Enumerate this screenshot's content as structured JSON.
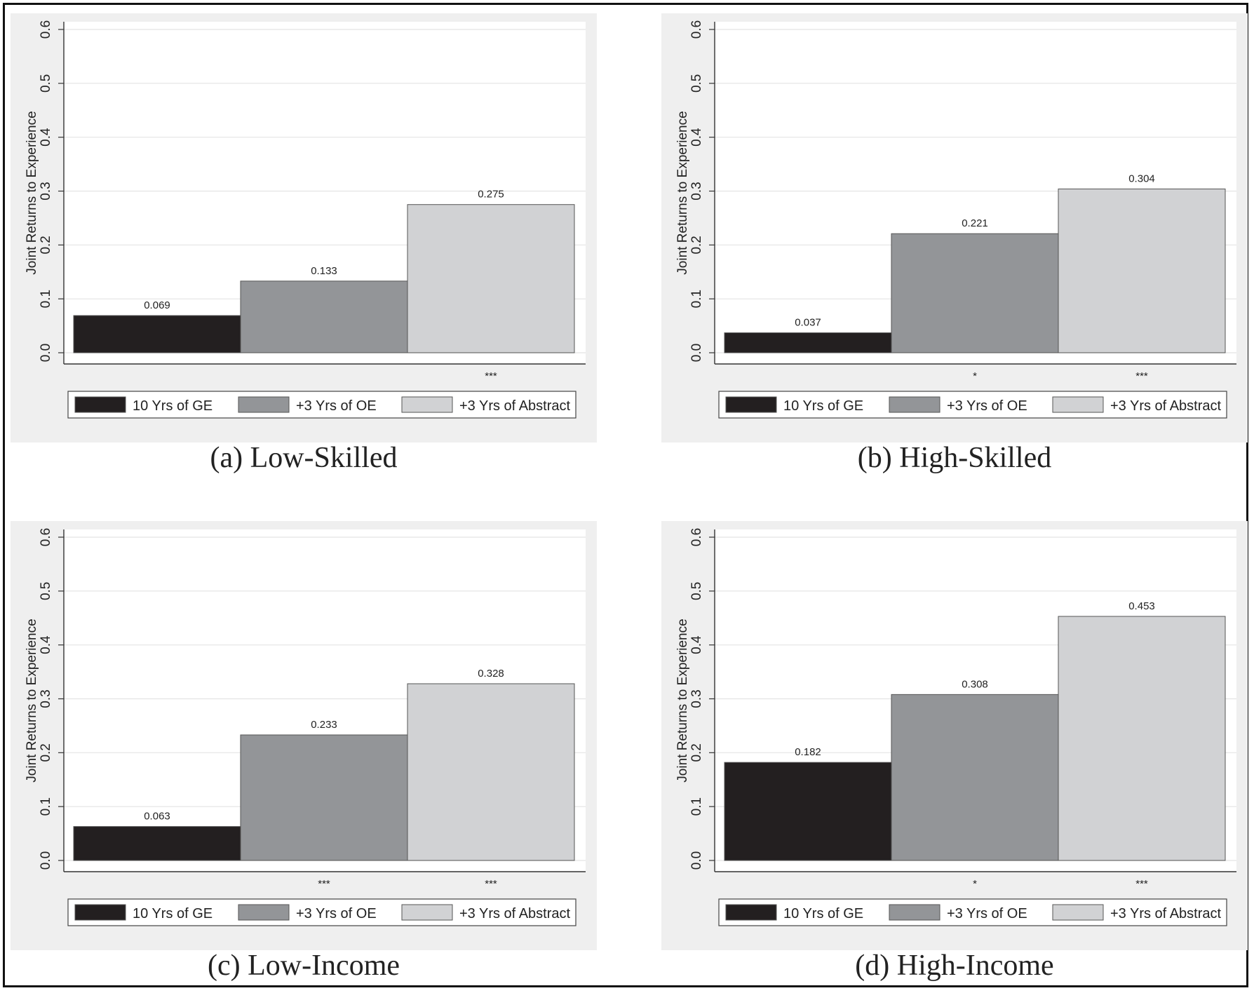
{
  "chart_data": [
    {
      "type": "bar",
      "caption": "(a) Low-Skilled",
      "ylabel": "Joint Returns to Experience",
      "ylim": [
        0,
        0.6
      ],
      "yticks": [
        "0.0",
        "0.1",
        "0.2",
        "0.3",
        "0.4",
        "0.5",
        "0.6"
      ],
      "grid": true,
      "legend_position": "bottom",
      "categories": [
        "10 Yrs of GE",
        "+3 Yrs of OE",
        "+3 Yrs of Abstract"
      ],
      "values": [
        0.069,
        0.133,
        0.275
      ],
      "value_labels": [
        "0.069",
        "0.133",
        "0.275"
      ],
      "significance": [
        "",
        "",
        "***"
      ]
    },
    {
      "type": "bar",
      "caption": "(b) High-Skilled",
      "ylabel": "Joint Returns to Experience",
      "ylim": [
        0,
        0.6
      ],
      "yticks": [
        "0.0",
        "0.1",
        "0.2",
        "0.3",
        "0.4",
        "0.5",
        "0.6"
      ],
      "grid": true,
      "legend_position": "bottom",
      "categories": [
        "10 Yrs of GE",
        "+3 Yrs of OE",
        "+3 Yrs of Abstract"
      ],
      "values": [
        0.037,
        0.221,
        0.304
      ],
      "value_labels": [
        "0.037",
        "0.221",
        "0.304"
      ],
      "significance": [
        "",
        "*",
        "***"
      ]
    },
    {
      "type": "bar",
      "caption": "(c) Low-Income",
      "ylabel": "Joint Returns to Experience",
      "ylim": [
        0,
        0.6
      ],
      "yticks": [
        "0.0",
        "0.1",
        "0.2",
        "0.3",
        "0.4",
        "0.5",
        "0.6"
      ],
      "grid": true,
      "legend_position": "bottom",
      "categories": [
        "10 Yrs of GE",
        "+3 Yrs of OE",
        "+3 Yrs of Abstract"
      ],
      "values": [
        0.063,
        0.233,
        0.328
      ],
      "value_labels": [
        "0.063",
        "0.233",
        "0.328"
      ],
      "significance": [
        "",
        "***",
        "***"
      ]
    },
    {
      "type": "bar",
      "caption": "(d) High-Income",
      "ylabel": "Joint Returns to Experience",
      "ylim": [
        0,
        0.6
      ],
      "yticks": [
        "0.0",
        "0.1",
        "0.2",
        "0.3",
        "0.4",
        "0.5",
        "0.6"
      ],
      "grid": true,
      "legend_position": "bottom",
      "categories": [
        "10 Yrs of GE",
        "+3 Yrs of OE",
        "+3 Yrs of Abstract"
      ],
      "values": [
        0.182,
        0.308,
        0.453
      ],
      "value_labels": [
        "0.182",
        "0.308",
        "0.453"
      ],
      "significance": [
        "",
        "*",
        "***"
      ]
    }
  ],
  "colors": {
    "bar_ge": "#231f20",
    "bar_oe": "#939598",
    "bar_abstract": "#d1d2d4",
    "panel_background": "#efefef",
    "plot_background": "#ffffff",
    "grid": "#e4e4e4"
  }
}
